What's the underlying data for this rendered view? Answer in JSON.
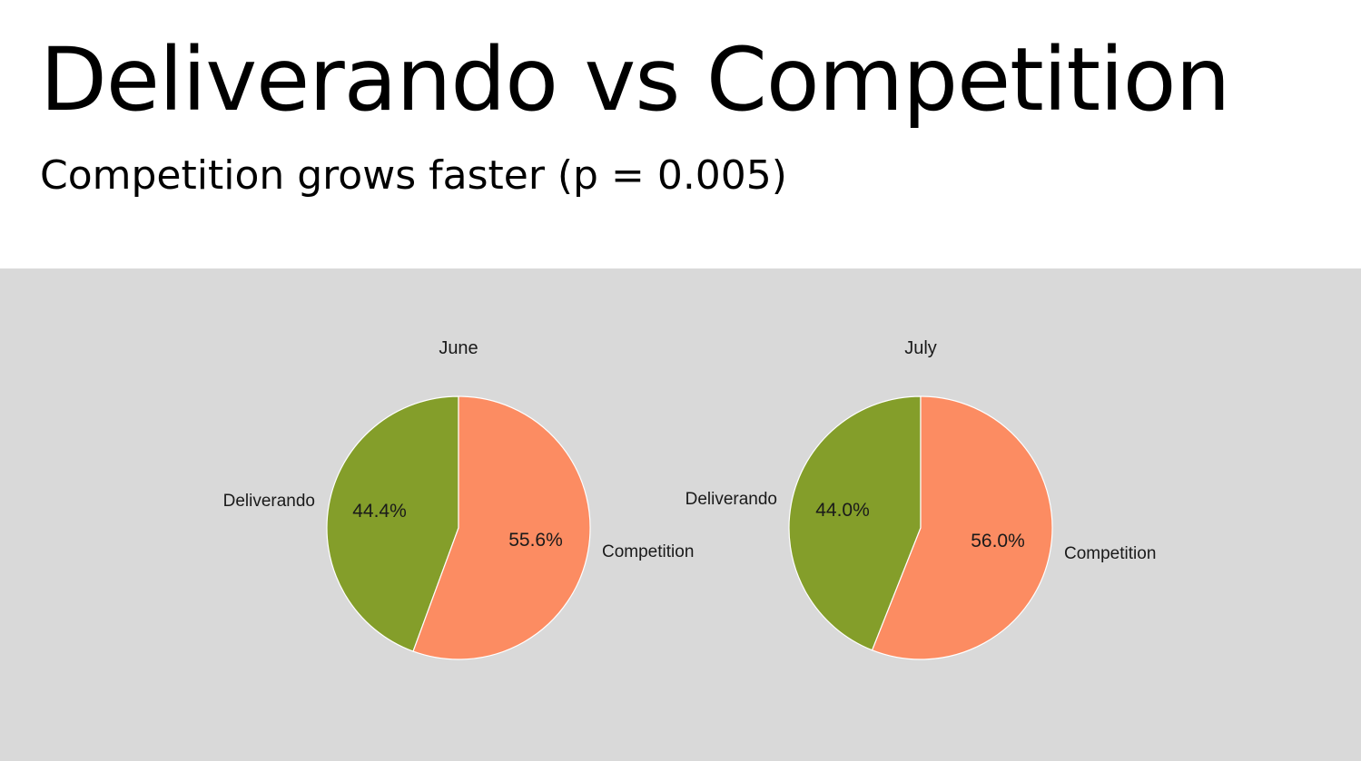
{
  "slide": {
    "title": "Deliverando vs Competition",
    "subtitle": "Competition grows faster (p = 0.005)"
  },
  "colors": {
    "panel_background": "#d9d9d9",
    "deliverando": "#849e2a",
    "competition": "#fc8c62",
    "slice_edge": "#ffffff"
  },
  "chart_data": [
    {
      "type": "pie",
      "title": "June",
      "labels": [
        "Deliverando",
        "Competition"
      ],
      "values": [
        44.4,
        55.6
      ],
      "value_labels": [
        "44.4%",
        "55.6%"
      ],
      "colors": [
        "#849e2a",
        "#fc8c62"
      ],
      "direction": "clockwise",
      "legend": "none"
    },
    {
      "type": "pie",
      "title": "July",
      "labels": [
        "Deliverando",
        "Competition"
      ],
      "values": [
        44.0,
        56.0
      ],
      "value_labels": [
        "44.0%",
        "56.0%"
      ],
      "colors": [
        "#849e2a",
        "#fc8c62"
      ],
      "direction": "clockwise",
      "legend": "none"
    }
  ]
}
